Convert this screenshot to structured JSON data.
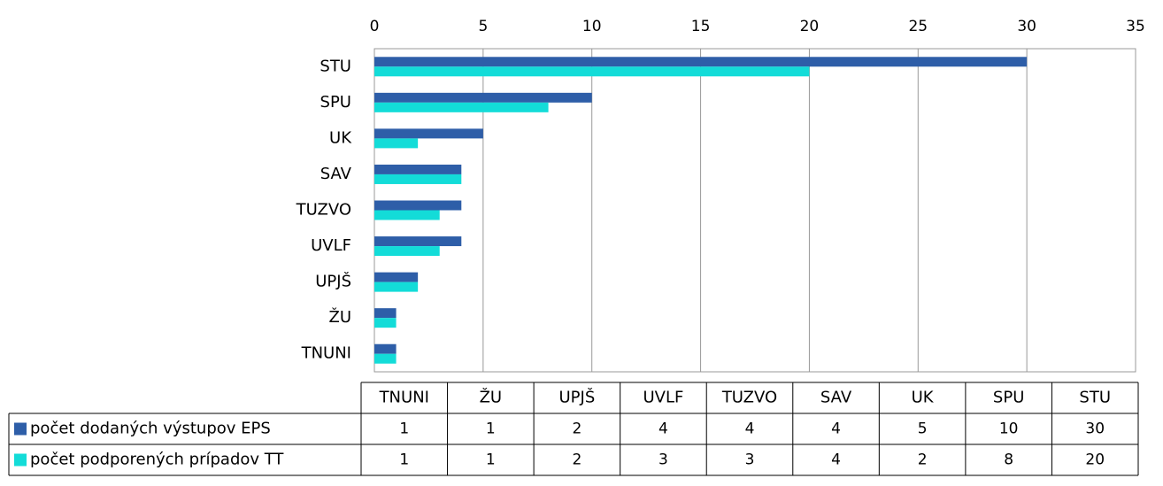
{
  "chart_data": {
    "type": "bar",
    "orientation": "horizontal",
    "categories": [
      "TNUNI",
      "ŽU",
      "UPJŠ",
      "UVLF",
      "TUZVO",
      "SAV",
      "UK",
      "SPU",
      "STU"
    ],
    "series": [
      {
        "name": "počet dodaných výstupov EPS",
        "color": "#2e5ea8",
        "values": [
          1,
          1,
          2,
          4,
          4,
          4,
          5,
          10,
          30
        ]
      },
      {
        "name": "počet podporených prípadov TT",
        "color": "#13dcd8",
        "values": [
          1,
          1,
          2,
          3,
          3,
          4,
          2,
          8,
          20
        ]
      }
    ],
    "xlim": [
      0,
      35
    ],
    "xticks": [
      0,
      5,
      10,
      15,
      20,
      25,
      30,
      35
    ],
    "grid": true,
    "data_table": true
  }
}
